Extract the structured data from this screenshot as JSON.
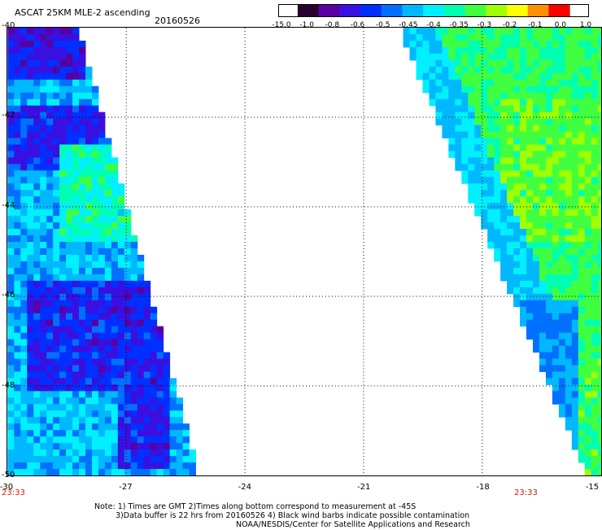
{
  "header": {
    "title": "ASCAT 25KM MLE-2 ascending",
    "date": "20160526"
  },
  "colorbar": {
    "labels": [
      "-15.0",
      "-1.0",
      "-0.8",
      "-0.6",
      "-0.5",
      "-0.45",
      "-0.4",
      "-0.35",
      "-0.3",
      "-0.2",
      "-0.1",
      "0.0",
      "1.0"
    ],
    "colors": [
      "#2a0030",
      "#5a00a0",
      "#3a10e0",
      "#0030ff",
      "#0070ff",
      "#00b8ff",
      "#00f0ff",
      "#00ffb0",
      "#40ff40",
      "#a0ff00",
      "#ffff00",
      "#ff9000",
      "#ff0000"
    ]
  },
  "map": {
    "lon_min": -30,
    "lon_max": -15,
    "lat_top": -40,
    "lat_bottom": -50,
    "lat_ticks": [
      "-40",
      "-42",
      "-44",
      "-46",
      "-48",
      "-50"
    ],
    "lon_ticks": [
      "-30",
      "-27",
      "-24",
      "-21",
      "-18",
      "-15"
    ],
    "pass_time_left": "23:33",
    "pass_time_right": "23:33"
  },
  "notes": {
    "line1": "Note: 1) Times are GMT 2)Times along bottom correspond to measurement at -45S",
    "line2": "3)Data buffer is 22 hrs from 20160526 4) Black wind barbs indicate possible contamination",
    "line3": "NOAA/NESDIS/Center for Satellite Applications and Research"
  }
}
